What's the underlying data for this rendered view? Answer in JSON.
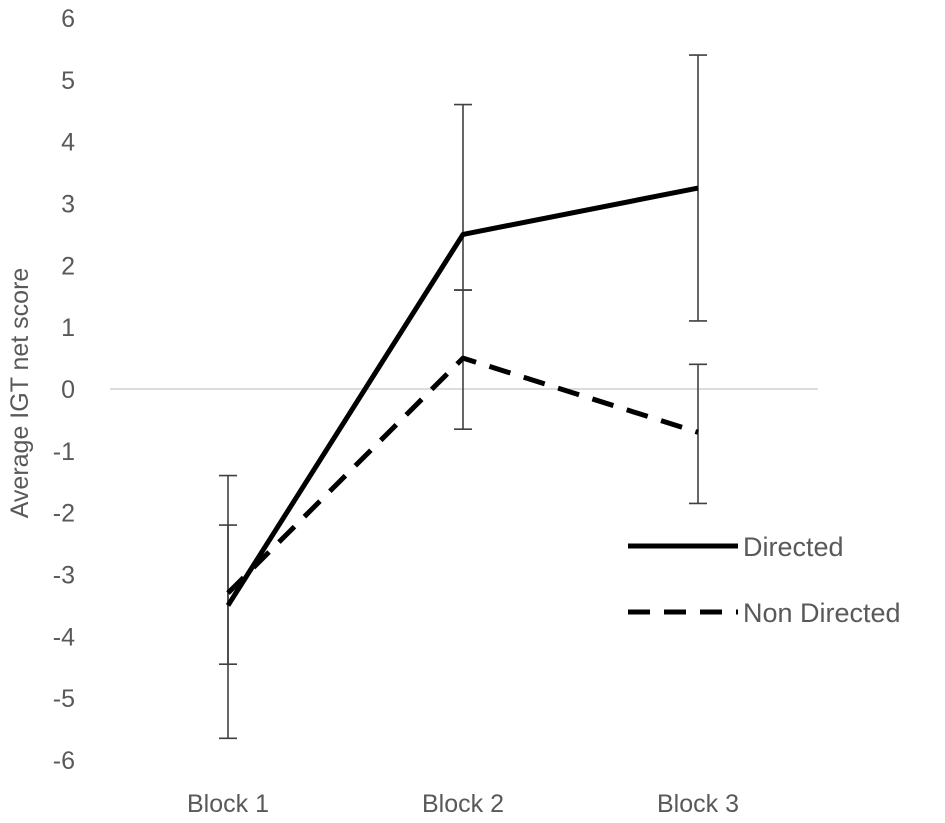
{
  "chart_data": {
    "type": "line",
    "title": "",
    "xlabel": "",
    "ylabel": "Average IGT net score",
    "ylim": [
      -6,
      6
    ],
    "yticks": [
      6,
      5,
      4,
      3,
      2,
      1,
      0,
      -1,
      -2,
      -3,
      -4,
      -5,
      -6
    ],
    "categories": [
      "Block 1",
      "Block 2",
      "Block 3"
    ],
    "grid": false,
    "zero_line": true,
    "legend_position": "right",
    "series": [
      {
        "name": "Directed",
        "values": [
          -3.5,
          2.5,
          3.25
        ],
        "error_low": [
          -5.65,
          1.6,
          1.1
        ],
        "error_high": [
          -1.4,
          4.6,
          5.4
        ],
        "line_style": "solid",
        "color": "#000000"
      },
      {
        "name": "Non Directed",
        "values": [
          -3.3,
          0.5,
          -0.7
        ],
        "error_low": [
          -4.45,
          -0.65,
          -1.85
        ],
        "error_high": [
          -2.2,
          1.6,
          0.4
        ],
        "line_style": "dashed",
        "color": "#000000"
      }
    ],
    "colors": {
      "axis_text": "#595959",
      "zero_line": "#d0d0d0",
      "error_bar": "#404040"
    }
  }
}
